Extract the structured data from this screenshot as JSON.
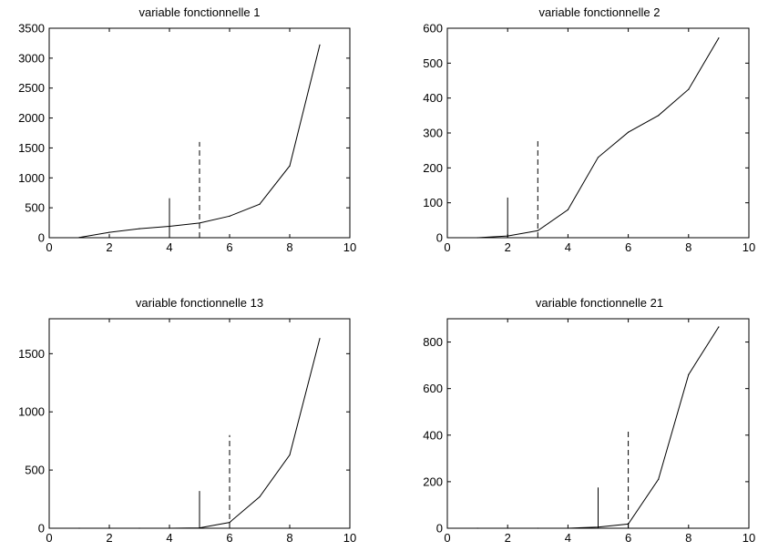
{
  "chart_data": [
    {
      "type": "line",
      "title": "variable fonctionnelle 1",
      "xlabel": "",
      "ylabel": "",
      "xlim": [
        0,
        10
      ],
      "ylim": [
        0,
        3500
      ],
      "xticks": [
        0,
        2,
        4,
        6,
        8,
        10
      ],
      "yticks": [
        0,
        500,
        1000,
        1500,
        2000,
        2500,
        3000,
        3500
      ],
      "x": [
        1,
        2,
        3,
        4,
        5,
        6,
        7,
        8,
        9
      ],
      "y": [
        5,
        90,
        150,
        190,
        245,
        360,
        560,
        1200,
        3220
      ],
      "markers": [
        {
          "style": "solid",
          "x": 4,
          "y_top": 660
        },
        {
          "style": "dashed",
          "x": 5,
          "y_top": 1600
        }
      ],
      "grid": false
    },
    {
      "type": "line",
      "title": "variable fonctionnelle 2",
      "xlabel": "",
      "ylabel": "",
      "xlim": [
        0,
        10
      ],
      "ylim": [
        0,
        600
      ],
      "xticks": [
        0,
        2,
        4,
        6,
        8,
        10
      ],
      "yticks": [
        0,
        100,
        200,
        300,
        400,
        500,
        600
      ],
      "x": [
        1,
        2,
        3,
        4,
        5,
        6,
        7,
        8,
        9
      ],
      "y": [
        0,
        5,
        20,
        80,
        230,
        302,
        350,
        425,
        572
      ],
      "markers": [
        {
          "style": "solid",
          "x": 2,
          "y_top": 115
        },
        {
          "style": "dashed",
          "x": 3,
          "y_top": 285
        }
      ],
      "grid": false
    },
    {
      "type": "line",
      "title": "variable fonctionnelle 13",
      "xlabel": "",
      "ylabel": "",
      "xlim": [
        0,
        10
      ],
      "ylim": [
        0,
        1800
      ],
      "xticks": [
        0,
        2,
        4,
        6,
        8,
        10
      ],
      "yticks": [
        0,
        500,
        1000,
        1500
      ],
      "x": [
        1,
        2,
        3,
        4,
        5,
        6,
        7,
        8,
        9
      ],
      "y": [
        0,
        0,
        0,
        0,
        3,
        50,
        270,
        630,
        1630
      ],
      "markers": [
        {
          "style": "solid",
          "x": 5,
          "y_top": 320
        },
        {
          "style": "dashed",
          "x": 6,
          "y_top": 800
        }
      ],
      "grid": false
    },
    {
      "type": "line",
      "title": "variable fonctionnelle 21",
      "xlabel": "",
      "ylabel": "",
      "xlim": [
        0,
        10
      ],
      "ylim": [
        0,
        900
      ],
      "xticks": [
        0,
        2,
        4,
        6,
        8,
        10
      ],
      "yticks": [
        0,
        200,
        400,
        600,
        800
      ],
      "x": [
        1,
        2,
        3,
        4,
        5,
        6,
        7,
        8,
        9
      ],
      "y": [
        0,
        0,
        0,
        0,
        5,
        18,
        210,
        660,
        865
      ],
      "markers": [
        {
          "style": "solid",
          "x": 5,
          "y_top": 175
        },
        {
          "style": "dashed",
          "x": 6,
          "y_top": 430
        }
      ],
      "grid": false
    }
  ]
}
